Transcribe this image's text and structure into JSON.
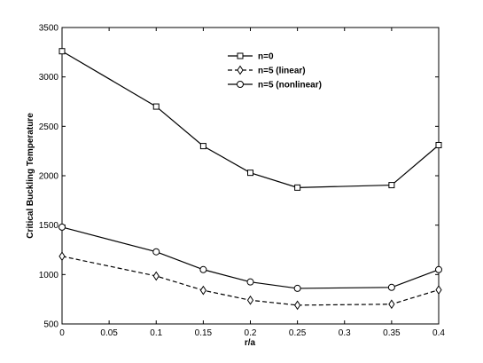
{
  "chart_data": {
    "type": "line",
    "title": "",
    "xlabel": "r/a",
    "ylabel": "Critical Buckling Temperature",
    "xlim": [
      0,
      0.4
    ],
    "ylim": [
      500,
      3500
    ],
    "x_ticks": [
      "0",
      "0.05",
      "0.1",
      "0.15",
      "0.2",
      "0.25",
      "0.3",
      "0.35",
      "0.4"
    ],
    "y_ticks": [
      "500",
      "1000",
      "1500",
      "2000",
      "2500",
      "3000",
      "3500"
    ],
    "grid": false,
    "legend_position": "top-center",
    "x": [
      0,
      0.1,
      0.15,
      0.2,
      0.25,
      0.35,
      0.4
    ],
    "series": [
      {
        "name": "n=0",
        "marker": "square",
        "line_style": "solid",
        "values": [
          3260,
          2700,
          2300,
          2030,
          1880,
          1905,
          2310
        ]
      },
      {
        "name": "n=5 (linear)",
        "marker": "diamond",
        "line_style": "dashed",
        "values": [
          1185,
          985,
          840,
          740,
          690,
          700,
          845
        ]
      },
      {
        "name": "n=5 (nonlinear)",
        "marker": "circle",
        "line_style": "solid",
        "values": [
          1480,
          1230,
          1050,
          925,
          860,
          870,
          1050
        ]
      }
    ]
  }
}
